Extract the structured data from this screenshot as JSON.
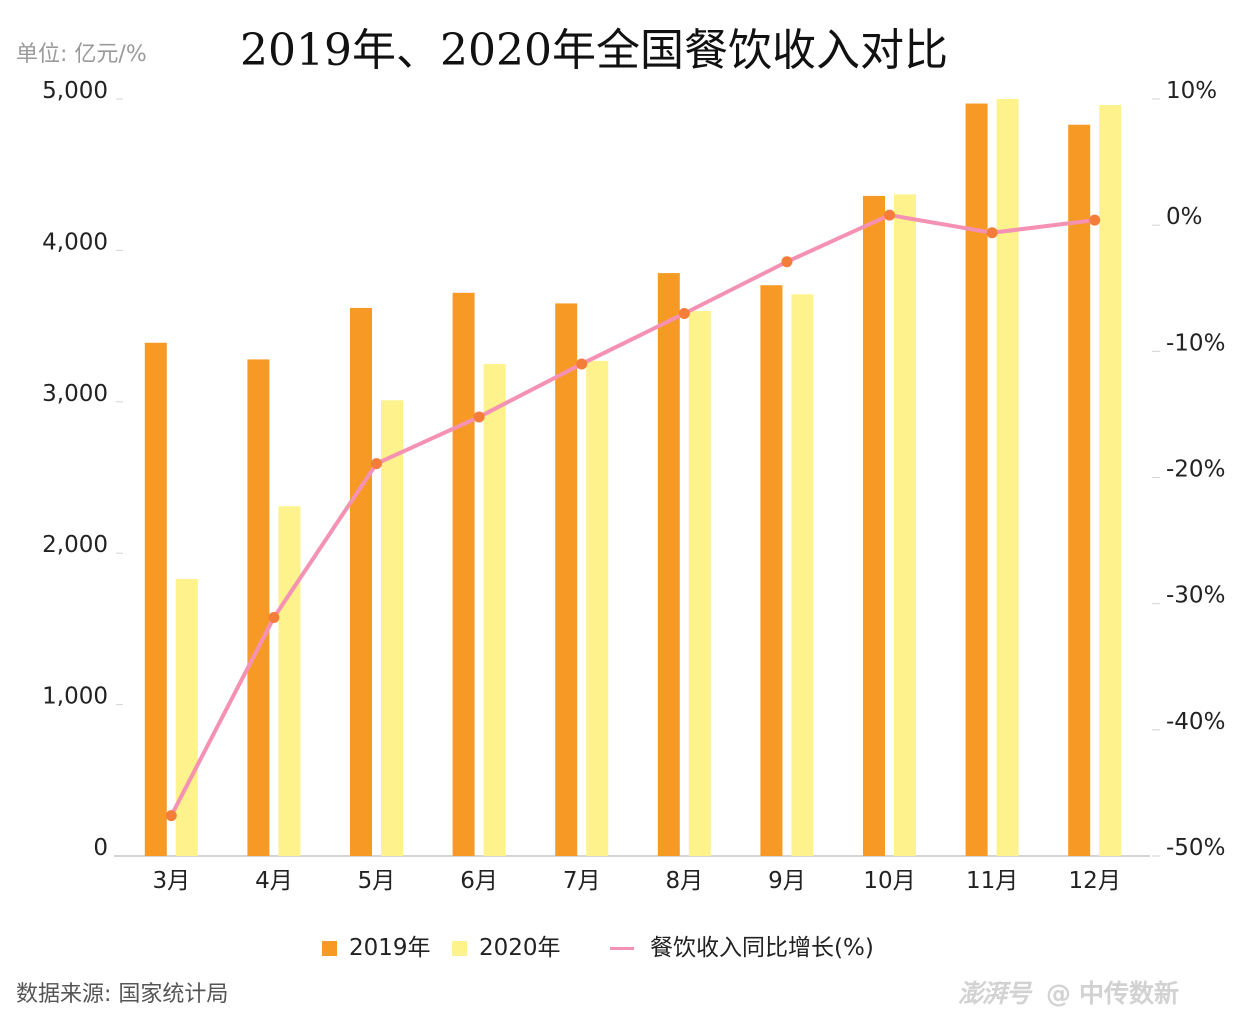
{
  "header": {
    "unit_label": "单位: 亿元/%",
    "title": "2019年、2020年全国餐饮收入对比"
  },
  "footer": {
    "source": "数据来源: 国家统计局",
    "watermark_logo": "澎湃号",
    "watermark_at": "@",
    "watermark_name": "中传数新"
  },
  "colors": {
    "bar_2019": "#f79a25",
    "bar_2020": "#fdf28b",
    "line": "#f591b2",
    "marker": "#f47d3a",
    "axis": "#d4d4d4",
    "tick_text": "#222222"
  },
  "chart_data": {
    "type": "bar",
    "title": "2019年、2020年全国餐饮收入对比",
    "categories": [
      "3月",
      "4月",
      "5月",
      "6月",
      "7月",
      "8月",
      "9月",
      "10月",
      "11月",
      "12月"
    ],
    "series": [
      {
        "name": "2019年",
        "type": "bar",
        "axis": "left",
        "values": [
          3390,
          3280,
          3620,
          3720,
          3650,
          3850,
          3770,
          4360,
          4970,
          4830
        ]
      },
      {
        "name": "2020年",
        "type": "bar",
        "axis": "left",
        "values": [
          1830,
          2310,
          3010,
          3250,
          3270,
          3600,
          3710,
          4370,
          5000,
          4960
        ]
      },
      {
        "name": "餐饮收入同比增长(%)",
        "type": "line",
        "axis": "right",
        "values": [
          -46.8,
          -31.1,
          -18.9,
          -15.2,
          -11.0,
          -7.0,
          -2.9,
          0.8,
          -0.6,
          0.4
        ]
      }
    ],
    "y_left": {
      "ylim": [
        0,
        5000
      ],
      "ticks": [
        0,
        1000,
        2000,
        3000,
        4000,
        5000
      ],
      "tick_labels": [
        "0",
        "1,000",
        "2,000",
        "3,000",
        "4,000",
        "5,000"
      ]
    },
    "y_right": {
      "ylim": [
        -50,
        10
      ],
      "ticks": [
        -50,
        -40,
        -30,
        -20,
        -10,
        0,
        10
      ],
      "tick_labels": [
        "-50%",
        "-40%",
        "-30%",
        "-20%",
        "-10%",
        "0%",
        "10%"
      ]
    },
    "grid": false,
    "legend": "bottom"
  }
}
